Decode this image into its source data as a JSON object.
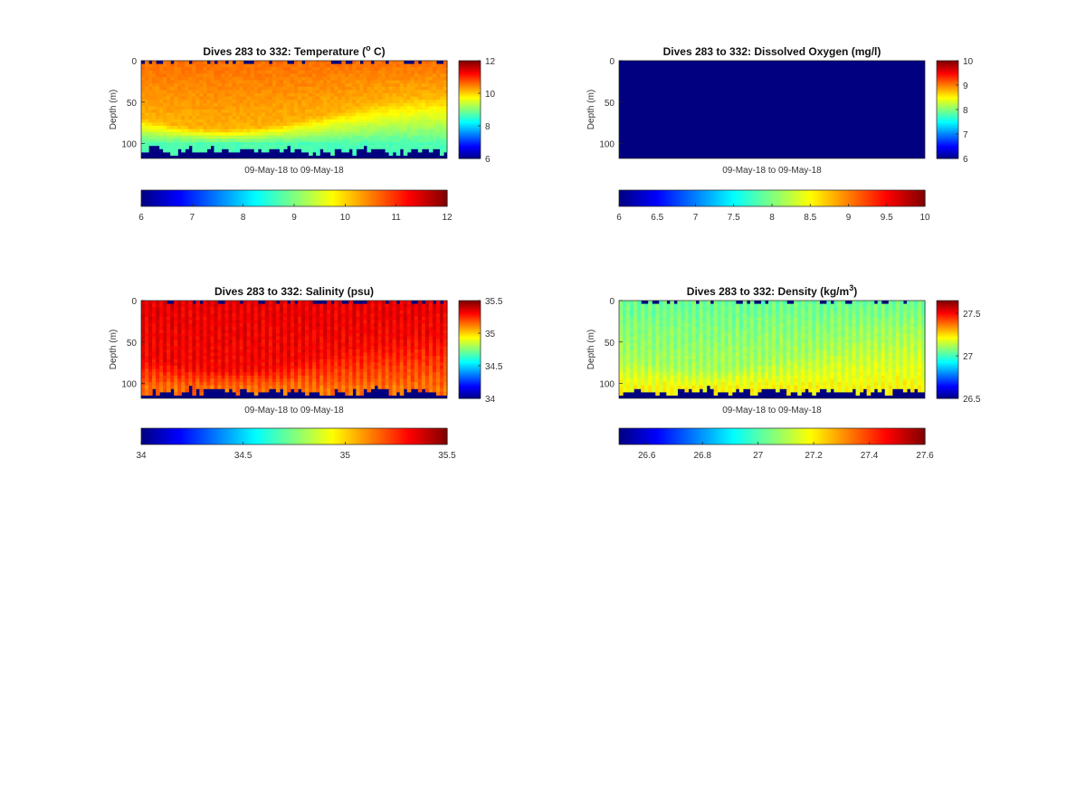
{
  "chart_data": [
    {
      "type": "heatmap",
      "title": "Dives 283 to 332: Temperature (",
      "title_sup": "o",
      "title_end": " C)",
      "ylabel": "Depth (m)",
      "xlabel": "09-May-18 to 09-May-18",
      "ylim": [
        0,
        118
      ],
      "y_ticks": [
        "0",
        "50",
        "100"
      ],
      "y_tick_values": [
        0,
        50,
        100
      ],
      "clim": [
        6,
        12
      ],
      "side_ticks": [
        "6",
        "8",
        "10",
        "12"
      ],
      "side_tick_values": [
        6,
        8,
        10,
        12
      ],
      "bottom_ticks": [
        "6",
        "7",
        "8",
        "9",
        "10",
        "11",
        "12"
      ],
      "bottom_tick_values": [
        6,
        7,
        8,
        9,
        10,
        11,
        12
      ],
      "field": "temperature",
      "profile": {
        "surface": 10.6,
        "mid": 10.2,
        "deep": 8.7,
        "deep_depth": 100
      }
    },
    {
      "type": "heatmap",
      "title": "Dives 283 to 332: Dissolved Oxygen (mg/l)",
      "title_sup": "",
      "title_end": "",
      "ylabel": "Depth (m)",
      "xlabel": "09-May-18 to 09-May-18",
      "ylim": [
        0,
        118
      ],
      "y_ticks": [
        "0",
        "50",
        "100"
      ],
      "y_tick_values": [
        0,
        50,
        100
      ],
      "clim": [
        6,
        10
      ],
      "side_ticks": [
        "6",
        "7",
        "8",
        "9",
        "10"
      ],
      "side_tick_values": [
        6,
        7,
        8,
        9,
        10
      ],
      "bottom_ticks": [
        "6",
        "6.5",
        "7",
        "7.5",
        "8",
        "8.5",
        "9",
        "9.5",
        "10"
      ],
      "bottom_tick_values": [
        6,
        6.5,
        7,
        7.5,
        8,
        8.5,
        9,
        9.5,
        10
      ],
      "field": "empty",
      "profile": {
        "surface": 6,
        "mid": 6,
        "deep": 6,
        "deep_depth": 100
      }
    },
    {
      "type": "heatmap",
      "title": "Dives 283 to 332: Salinity (psu)",
      "title_sup": "",
      "title_end": "",
      "ylabel": "Depth (m)",
      "xlabel": "09-May-18 to 09-May-18",
      "ylim": [
        0,
        118
      ],
      "y_ticks": [
        "0",
        "50",
        "100"
      ],
      "y_tick_values": [
        0,
        50,
        100
      ],
      "clim": [
        34,
        35.5
      ],
      "side_ticks": [
        "34",
        "34.5",
        "35",
        "35.5"
      ],
      "side_tick_values": [
        34,
        34.5,
        35,
        35.5
      ],
      "bottom_ticks": [
        "34",
        "34.5",
        "35",
        "35.5"
      ],
      "bottom_tick_values": [
        34,
        34.5,
        35,
        35.5
      ],
      "field": "salinity",
      "profile": {
        "surface": 35.35,
        "mid": 35.32,
        "deep": 35.15,
        "deep_depth": 105
      }
    },
    {
      "type": "heatmap",
      "title": "Dives 283 to 332: Density (kg/m",
      "title_sup": "3",
      "title_end": ")",
      "ylabel": "Depth (m)",
      "xlabel": "09-May-18 to 09-May-18",
      "ylim": [
        0,
        118
      ],
      "y_ticks": [
        "0",
        "50",
        "100"
      ],
      "y_tick_values": [
        0,
        50,
        100
      ],
      "clim": [
        26.5,
        27.65
      ],
      "side_ticks": [
        "26.5",
        "27",
        "27.5"
      ],
      "side_tick_values": [
        26.5,
        27,
        27.5
      ],
      "bottom_ticks": [
        "26.6",
        "26.8",
        "27",
        "27.2",
        "27.4",
        "27.6"
      ],
      "bottom_tick_values": [
        26.6,
        26.8,
        27,
        27.2,
        27.4,
        27.6
      ],
      "field": "density",
      "profile": {
        "surface": 27.05,
        "mid": 27.12,
        "deep": 27.22,
        "deep_depth": 105
      }
    }
  ]
}
